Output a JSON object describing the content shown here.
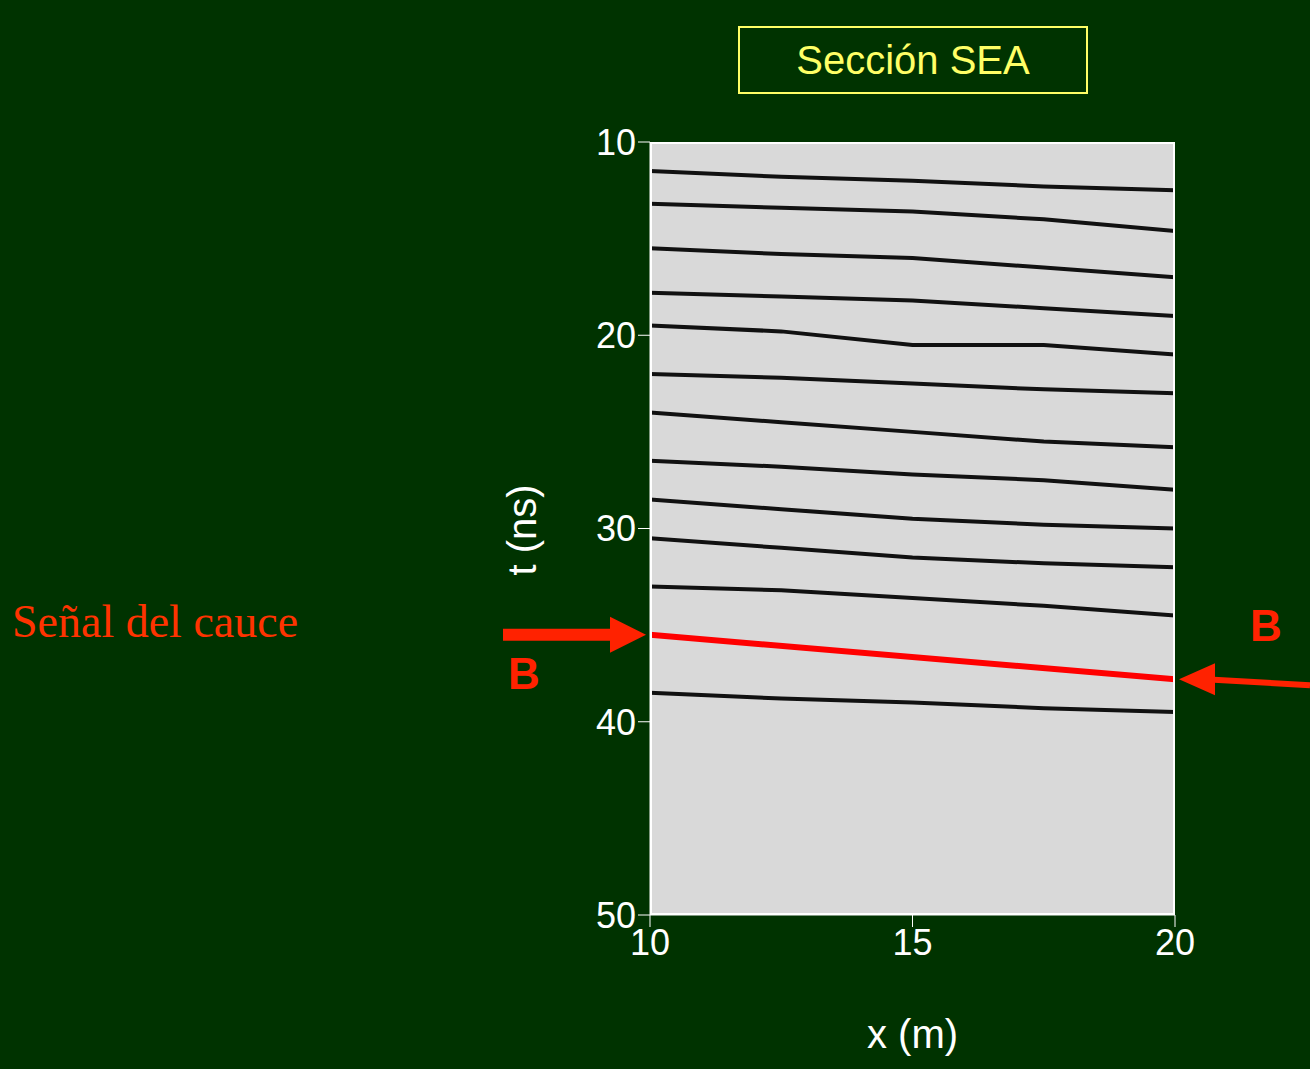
{
  "chart_data": {
    "type": "line",
    "title": "Sección SEA",
    "x_label": "x (m)",
    "y_label": "t (ns)",
    "xlim": [
      10,
      20
    ],
    "xticks": [
      10,
      15,
      20
    ],
    "ylim": [
      50,
      10
    ],
    "yticks": [
      10,
      20,
      30,
      40,
      50
    ],
    "grid": false,
    "series": [
      {
        "color": "#111111",
        "x": [
          10,
          12.5,
          15,
          17.5,
          20
        ],
        "values": [
          11.5,
          11.8,
          12.0,
          12.3,
          12.5
        ]
      },
      {
        "color": "#111111",
        "x": [
          10,
          12.5,
          15,
          17.5,
          20
        ],
        "values": [
          13.2,
          13.4,
          13.6,
          14.0,
          14.6
        ]
      },
      {
        "color": "#111111",
        "x": [
          10,
          12.5,
          15,
          17.5,
          20
        ],
        "values": [
          15.5,
          15.8,
          16.0,
          16.5,
          17.0
        ]
      },
      {
        "color": "#111111",
        "x": [
          10,
          12.5,
          15,
          17.5,
          20
        ],
        "values": [
          17.8,
          18.0,
          18.2,
          18.6,
          19.0
        ]
      },
      {
        "color": "#111111",
        "x": [
          10,
          12.5,
          15,
          17.5,
          20
        ],
        "values": [
          19.5,
          19.8,
          20.5,
          20.5,
          21.0
        ]
      },
      {
        "color": "#111111",
        "x": [
          10,
          12.5,
          15,
          17.5,
          20
        ],
        "values": [
          22.0,
          22.2,
          22.5,
          22.8,
          23.0
        ]
      },
      {
        "color": "#111111",
        "x": [
          10,
          12.5,
          15,
          17.5,
          20
        ],
        "values": [
          24.0,
          24.5,
          25.0,
          25.5,
          25.8
        ]
      },
      {
        "color": "#111111",
        "x": [
          10,
          12.5,
          15,
          17.5,
          20
        ],
        "values": [
          26.5,
          26.8,
          27.2,
          27.5,
          28.0
        ]
      },
      {
        "color": "#111111",
        "x": [
          10,
          12.5,
          15,
          17.5,
          20
        ],
        "values": [
          28.5,
          29.0,
          29.5,
          29.8,
          30.0
        ]
      },
      {
        "color": "#111111",
        "x": [
          10,
          12.5,
          15,
          17.5,
          20
        ],
        "values": [
          30.5,
          31.0,
          31.5,
          31.8,
          32.0
        ]
      },
      {
        "color": "#111111",
        "x": [
          10,
          12.5,
          15,
          17.5,
          20
        ],
        "values": [
          33.0,
          33.2,
          33.6,
          34.0,
          34.5
        ]
      },
      {
        "color": "#111111",
        "x": [
          10,
          12.5,
          15,
          17.5,
          20
        ],
        "values": [
          38.5,
          38.8,
          39.0,
          39.3,
          39.5
        ]
      },
      {
        "name": "Señal del cauce",
        "color": "#ff0000",
        "x": [
          10,
          20
        ],
        "values": [
          35.5,
          37.8
        ]
      }
    ],
    "annotations": [
      {
        "text": "B",
        "x": 10,
        "y": 35.5
      },
      {
        "text": "B",
        "x": 20,
        "y": 37.8
      }
    ]
  }
}
